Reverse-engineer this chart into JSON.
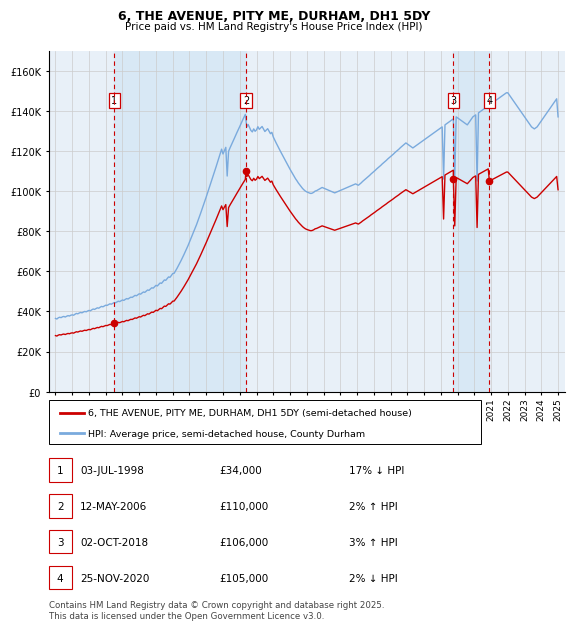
{
  "title": "6, THE AVENUE, PITY ME, DURHAM, DH1 5DY",
  "subtitle": "Price paid vs. HM Land Registry's House Price Index (HPI)",
  "legend_line1": "6, THE AVENUE, PITY ME, DURHAM, DH1 5DY (semi-detached house)",
  "legend_line2": "HPI: Average price, semi-detached house, County Durham",
  "footer": "Contains HM Land Registry data © Crown copyright and database right 2025.\nThis data is licensed under the Open Government Licence v3.0.",
  "transactions": [
    {
      "num": 1,
      "date": "03-JUL-1998",
      "price": 34000,
      "pct": "17%",
      "dir": "↓",
      "year": 1998.5
    },
    {
      "num": 2,
      "date": "12-MAY-2006",
      "price": 110000,
      "pct": "2%",
      "dir": "↑",
      "year": 2006.37
    },
    {
      "num": 3,
      "date": "02-OCT-2018",
      "price": 106000,
      "pct": "3%",
      "dir": "↑",
      "year": 2018.75
    },
    {
      "num": 4,
      "date": "25-NOV-2020",
      "price": 105000,
      "pct": "2%",
      "dir": "↓",
      "year": 2020.9
    }
  ],
  "hpi_color": "#7aaadd",
  "price_color": "#cc0000",
  "vline_color": "#cc0000",
  "shade_color": "#d8e8f5",
  "background_color": "#e8f0f8",
  "plot_bg": "#ffffff",
  "grid_color": "#cccccc",
  "ylim": [
    0,
    170000
  ],
  "yticks": [
    0,
    20000,
    40000,
    60000,
    80000,
    100000,
    120000,
    140000,
    160000
  ],
  "xlim_start": 1994.6,
  "xlim_end": 2025.4,
  "hpi_months": [
    1995.0,
    1995.083,
    1995.167,
    1995.25,
    1995.333,
    1995.417,
    1995.5,
    1995.583,
    1995.667,
    1995.75,
    1995.833,
    1995.917,
    1996.0,
    1996.083,
    1996.167,
    1996.25,
    1996.333,
    1996.417,
    1996.5,
    1996.583,
    1996.667,
    1996.75,
    1996.833,
    1996.917,
    1997.0,
    1997.083,
    1997.167,
    1997.25,
    1997.333,
    1997.417,
    1997.5,
    1997.583,
    1997.667,
    1997.75,
    1997.833,
    1997.917,
    1998.0,
    1998.083,
    1998.167,
    1998.25,
    1998.333,
    1998.417,
    1998.5,
    1998.583,
    1998.667,
    1998.75,
    1998.833,
    1998.917,
    1999.0,
    1999.083,
    1999.167,
    1999.25,
    1999.333,
    1999.417,
    1999.5,
    1999.583,
    1999.667,
    1999.75,
    1999.833,
    1999.917,
    2000.0,
    2000.083,
    2000.167,
    2000.25,
    2000.333,
    2000.417,
    2000.5,
    2000.583,
    2000.667,
    2000.75,
    2000.833,
    2000.917,
    2001.0,
    2001.083,
    2001.167,
    2001.25,
    2001.333,
    2001.417,
    2001.5,
    2001.583,
    2001.667,
    2001.75,
    2001.833,
    2001.917,
    2002.0,
    2002.083,
    2002.167,
    2002.25,
    2002.333,
    2002.417,
    2002.5,
    2002.583,
    2002.667,
    2002.75,
    2002.833,
    2002.917,
    2003.0,
    2003.083,
    2003.167,
    2003.25,
    2003.333,
    2003.417,
    2003.5,
    2003.583,
    2003.667,
    2003.75,
    2003.833,
    2003.917,
    2004.0,
    2004.083,
    2004.167,
    2004.25,
    2004.333,
    2004.417,
    2004.5,
    2004.583,
    2004.667,
    2004.75,
    2004.833,
    2004.917,
    2005.0,
    2005.083,
    2005.167,
    2005.25,
    2005.333,
    2005.417,
    2005.5,
    2005.583,
    2005.667,
    2005.75,
    2005.833,
    2005.917,
    2006.0,
    2006.083,
    2006.167,
    2006.25,
    2006.333,
    2006.417,
    2006.5,
    2006.583,
    2006.667,
    2006.75,
    2006.833,
    2006.917,
    2007.0,
    2007.083,
    2007.167,
    2007.25,
    2007.333,
    2007.417,
    2007.5,
    2007.583,
    2007.667,
    2007.75,
    2007.833,
    2007.917,
    2008.0,
    2008.083,
    2008.167,
    2008.25,
    2008.333,
    2008.417,
    2008.5,
    2008.583,
    2008.667,
    2008.75,
    2008.833,
    2008.917,
    2009.0,
    2009.083,
    2009.167,
    2009.25,
    2009.333,
    2009.417,
    2009.5,
    2009.583,
    2009.667,
    2009.75,
    2009.833,
    2009.917,
    2010.0,
    2010.083,
    2010.167,
    2010.25,
    2010.333,
    2010.417,
    2010.5,
    2010.583,
    2010.667,
    2010.75,
    2010.833,
    2010.917,
    2011.0,
    2011.083,
    2011.167,
    2011.25,
    2011.333,
    2011.417,
    2011.5,
    2011.583,
    2011.667,
    2011.75,
    2011.833,
    2011.917,
    2012.0,
    2012.083,
    2012.167,
    2012.25,
    2012.333,
    2012.417,
    2012.5,
    2012.583,
    2012.667,
    2012.75,
    2012.833,
    2012.917,
    2013.0,
    2013.083,
    2013.167,
    2013.25,
    2013.333,
    2013.417,
    2013.5,
    2013.583,
    2013.667,
    2013.75,
    2013.833,
    2013.917,
    2014.0,
    2014.083,
    2014.167,
    2014.25,
    2014.333,
    2014.417,
    2014.5,
    2014.583,
    2014.667,
    2014.75,
    2014.833,
    2014.917,
    2015.0,
    2015.083,
    2015.167,
    2015.25,
    2015.333,
    2015.417,
    2015.5,
    2015.583,
    2015.667,
    2015.75,
    2015.833,
    2015.917,
    2016.0,
    2016.083,
    2016.167,
    2016.25,
    2016.333,
    2016.417,
    2016.5,
    2016.583,
    2016.667,
    2016.75,
    2016.833,
    2016.917,
    2017.0,
    2017.083,
    2017.167,
    2017.25,
    2017.333,
    2017.417,
    2017.5,
    2017.583,
    2017.667,
    2017.75,
    2017.833,
    2017.917,
    2018.0,
    2018.083,
    2018.167,
    2018.25,
    2018.333,
    2018.417,
    2018.5,
    2018.583,
    2018.667,
    2018.75,
    2018.833,
    2018.917,
    2019.0,
    2019.083,
    2019.167,
    2019.25,
    2019.333,
    2019.417,
    2019.5,
    2019.583,
    2019.667,
    2019.75,
    2019.833,
    2019.917,
    2020.0,
    2020.083,
    2020.167,
    2020.25,
    2020.333,
    2020.417,
    2020.5,
    2020.583,
    2020.667,
    2020.75,
    2020.833,
    2020.917,
    2021.0,
    2021.083,
    2021.167,
    2021.25,
    2021.333,
    2021.417,
    2021.5,
    2021.583,
    2021.667,
    2021.75,
    2021.833,
    2021.917,
    2022.0,
    2022.083,
    2022.167,
    2022.25,
    2022.333,
    2022.417,
    2022.5,
    2022.583,
    2022.667,
    2022.75,
    2022.833,
    2022.917,
    2023.0,
    2023.083,
    2023.167,
    2023.25,
    2023.333,
    2023.417,
    2023.5,
    2023.583,
    2023.667,
    2023.75,
    2023.833,
    2023.917,
    2024.0,
    2024.083,
    2024.167,
    2024.25,
    2024.333,
    2024.417,
    2024.5,
    2024.583,
    2024.667,
    2024.75,
    2024.833,
    2024.917,
    2025.0
  ],
  "hpi_values": [
    36500,
    36200,
    36800,
    37100,
    36900,
    37300,
    37500,
    37200,
    37600,
    37900,
    37700,
    38100,
    38300,
    38100,
    38600,
    39000,
    38800,
    39200,
    39500,
    39300,
    39700,
    40000,
    39800,
    40200,
    40500,
    40300,
    40800,
    41200,
    41000,
    41400,
    41800,
    41600,
    42100,
    42500,
    42300,
    42700,
    43100,
    43000,
    43400,
    43800,
    43600,
    44000,
    44400,
    44300,
    44700,
    45100,
    44900,
    45300,
    45700,
    45500,
    46000,
    46400,
    46200,
    46700,
    47100,
    47000,
    47500,
    48000,
    47800,
    48300,
    48800,
    48600,
    49200,
    49700,
    49500,
    50100,
    50700,
    50500,
    51200,
    51800,
    51600,
    52300,
    53000,
    52700,
    53500,
    54200,
    54000,
    54900,
    55700,
    55500,
    56400,
    57200,
    57000,
    57900,
    58900,
    59000,
    60200,
    61400,
    62700,
    64000,
    65400,
    66800,
    68300,
    69800,
    71400,
    72900,
    74600,
    76200,
    77900,
    79600,
    81500,
    83200,
    85100,
    87100,
    89000,
    91000,
    93000,
    95100,
    97100,
    99200,
    101300,
    103400,
    105500,
    107700,
    109800,
    112000,
    114200,
    116400,
    118600,
    120900,
    118500,
    120200,
    121800,
    107500,
    119800,
    121500,
    123000,
    124600,
    126100,
    127700,
    129200,
    130700,
    132200,
    133800,
    135300,
    136800,
    138200,
    132000,
    133200,
    131700,
    130200,
    129500,
    131000,
    129800,
    130500,
    132100,
    130800,
    131500,
    132200,
    130900,
    129700,
    130400,
    131100,
    129800,
    128600,
    129300,
    127000,
    125500,
    124100,
    122700,
    121400,
    120000,
    118700,
    117400,
    116100,
    114800,
    113500,
    112200,
    110900,
    109700,
    108400,
    107200,
    106100,
    105100,
    104000,
    103100,
    102200,
    101300,
    100600,
    100000,
    99600,
    99300,
    99000,
    98800,
    99000,
    99400,
    100000,
    100200,
    100600,
    101000,
    101400,
    101800,
    101500,
    101200,
    100900,
    100600,
    100300,
    100000,
    99700,
    99400,
    99100,
    99400,
    99700,
    100000,
    100300,
    100600,
    100900,
    101200,
    101500,
    101800,
    102100,
    102400,
    102700,
    103000,
    103300,
    103600,
    103200,
    102900,
    103500,
    104100,
    104800,
    105400,
    106000,
    106600,
    107200,
    107800,
    108500,
    109100,
    109700,
    110300,
    111000,
    111600,
    112200,
    112800,
    113500,
    114100,
    114700,
    115300,
    116000,
    116600,
    117200,
    117800,
    118400,
    119100,
    119700,
    120300,
    120900,
    121600,
    122200,
    122800,
    123400,
    124000,
    123500,
    123000,
    122500,
    122000,
    121500,
    122000,
    122500,
    123000,
    123500,
    124000,
    124500,
    125000,
    125500,
    126000,
    126500,
    127000,
    127500,
    128000,
    128500,
    129000,
    129500,
    130000,
    130500,
    131000,
    131500,
    132000,
    106000,
    133000,
    133500,
    134000,
    134500,
    135000,
    135500,
    136000,
    106000,
    137000,
    136500,
    136000,
    135500,
    135000,
    134500,
    134000,
    133500,
    133000,
    134000,
    135000,
    136000,
    137000,
    137500,
    138000,
    105000,
    139000,
    139500,
    140000,
    140500,
    141000,
    141500,
    142000,
    142500,
    143000,
    143500,
    144000,
    144500,
    145000,
    145500,
    146000,
    146500,
    147000,
    147500,
    148000,
    148500,
    149000,
    149000,
    148000,
    147000,
    146000,
    145000,
    144000,
    143000,
    142000,
    141000,
    140000,
    139000,
    138000,
    137000,
    136000,
    135000,
    134000,
    133000,
    132000,
    131500,
    131000,
    131500,
    132000,
    133000,
    134000,
    135000,
    136000,
    137000,
    138000,
    139000,
    140000,
    141000,
    142000,
    143000,
    144000,
    145000,
    146000,
    137000
  ]
}
